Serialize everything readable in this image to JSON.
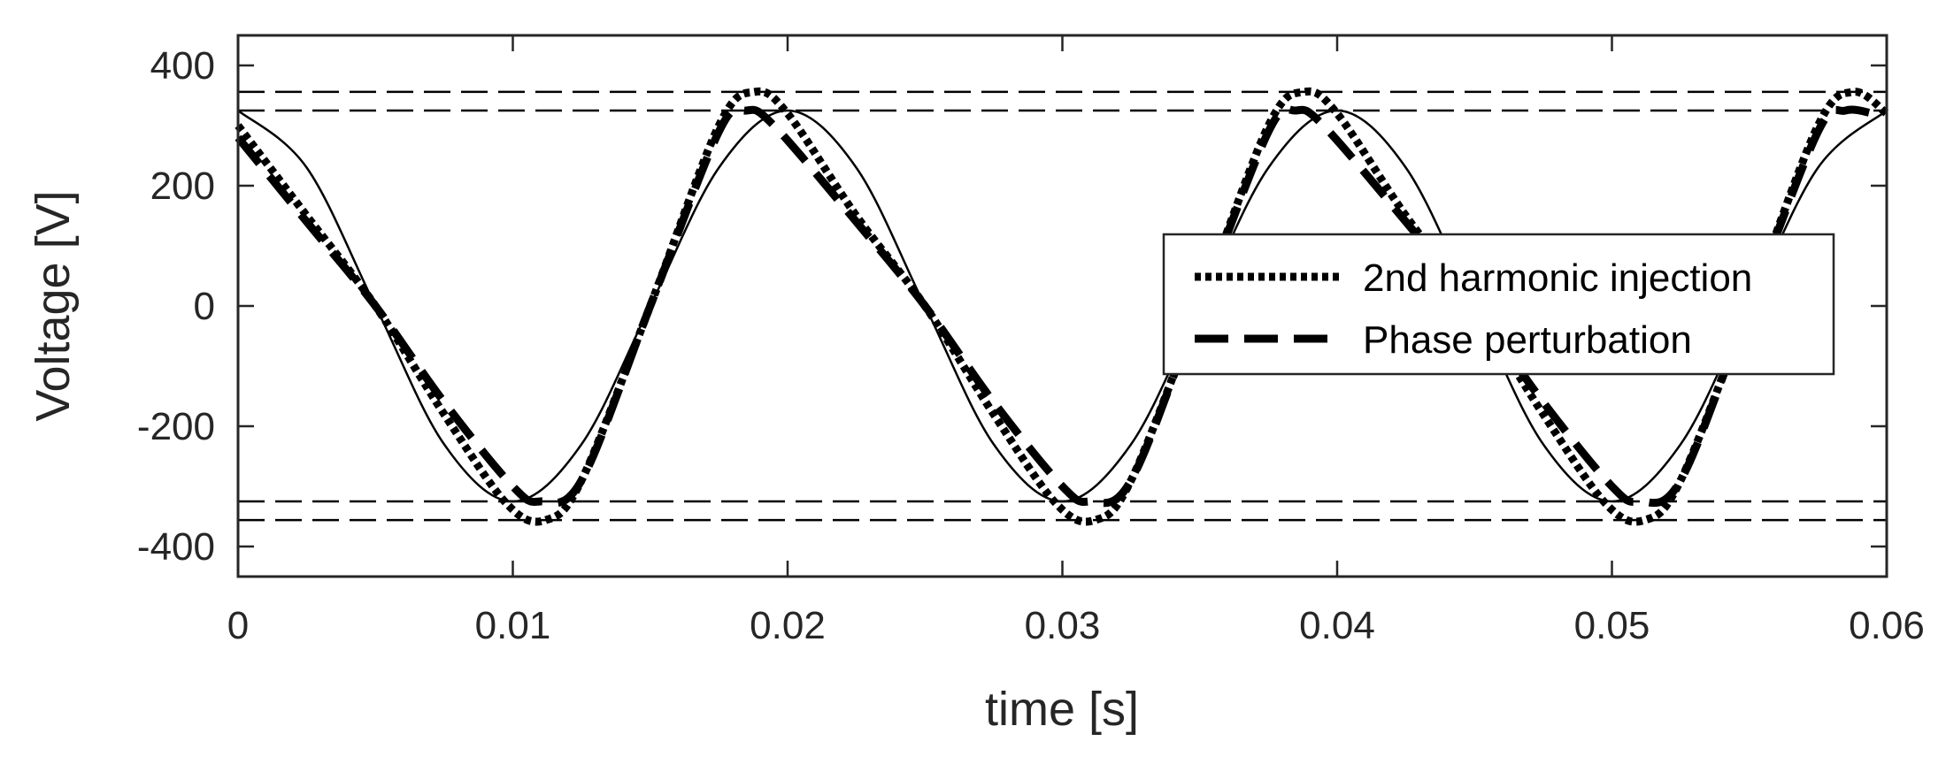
{
  "chart_data": {
    "type": "line",
    "title": "",
    "xlabel": "time [s]",
    "ylabel": "Voltage [V]",
    "xlim": [
      0,
      0.06
    ],
    "ylim": [
      -450,
      450
    ],
    "xticks": [
      0,
      0.01,
      0.02,
      0.03,
      0.04,
      0.05,
      0.06
    ],
    "xtick_labels": [
      "0",
      "0.01",
      "0.02",
      "0.03",
      "0.04",
      "0.05",
      "0.06"
    ],
    "yticks": [
      -400,
      -200,
      0,
      200,
      400
    ],
    "ytick_labels": [
      "-400",
      "-200",
      "0",
      "200",
      "400"
    ],
    "grid": false,
    "legend_placement": "center-right",
    "reference_lines": [
      356,
      325,
      -325,
      -356
    ],
    "series": [
      {
        "style": "solid",
        "x": [
          0,
          0.0025,
          0.005,
          0.0075,
          0.01,
          0.0125,
          0.015,
          0.0175,
          0.02,
          0.0225,
          0.025,
          0.0275,
          0.03,
          0.0325,
          0.035,
          0.0375,
          0.04,
          0.0425,
          0.045,
          0.0475,
          0.05,
          0.0525,
          0.055,
          0.0575,
          0.06
        ],
        "y": [
          325,
          230,
          0,
          -230,
          -325,
          -230,
          0,
          230,
          325,
          230,
          0,
          -230,
          -325,
          -230,
          0,
          230,
          325,
          230,
          0,
          -230,
          -325,
          -230,
          0,
          230,
          325
        ]
      },
      {
        "name": "2nd harmonic injection",
        "style": "dotted",
        "x": [
          0,
          0.0025,
          0.005,
          0.0075,
          0.0098,
          0.0112,
          0.0125,
          0.015,
          0.0175,
          0.0188,
          0.02,
          0.0225,
          0.025,
          0.0275,
          0.0298,
          0.0312,
          0.0325,
          0.035,
          0.0375,
          0.0388,
          0.04,
          0.0425,
          0.045,
          0.0475,
          0.0498,
          0.0512,
          0.0525,
          0.055,
          0.0575,
          0.0588,
          0.06
        ],
        "y": [
          300,
          150,
          0,
          -180,
          -330,
          -356,
          -290,
          0,
          300,
          356,
          320,
          150,
          0,
          -180,
          -330,
          -356,
          -290,
          0,
          300,
          356,
          320,
          150,
          0,
          -180,
          -330,
          -356,
          -290,
          0,
          300,
          356,
          320
        ]
      },
      {
        "name": "Phase perturbation",
        "style": "dashed",
        "x": [
          0,
          0.0025,
          0.005,
          0.0075,
          0.01,
          0.011,
          0.0125,
          0.015,
          0.0175,
          0.0185,
          0.0195,
          0.0225,
          0.025,
          0.0275,
          0.03,
          0.031,
          0.0325,
          0.035,
          0.0375,
          0.0385,
          0.0395,
          0.0425,
          0.045,
          0.0475,
          0.05,
          0.051,
          0.0525,
          0.055,
          0.0575,
          0.0585,
          0.0595
        ],
        "y": [
          280,
          140,
          0,
          -160,
          -300,
          -325,
          -290,
          0,
          290,
          325,
          300,
          140,
          0,
          -160,
          -300,
          -325,
          -290,
          0,
          290,
          325,
          300,
          140,
          0,
          -160,
          -300,
          -325,
          -290,
          0,
          290,
          325,
          320
        ]
      }
    ]
  }
}
